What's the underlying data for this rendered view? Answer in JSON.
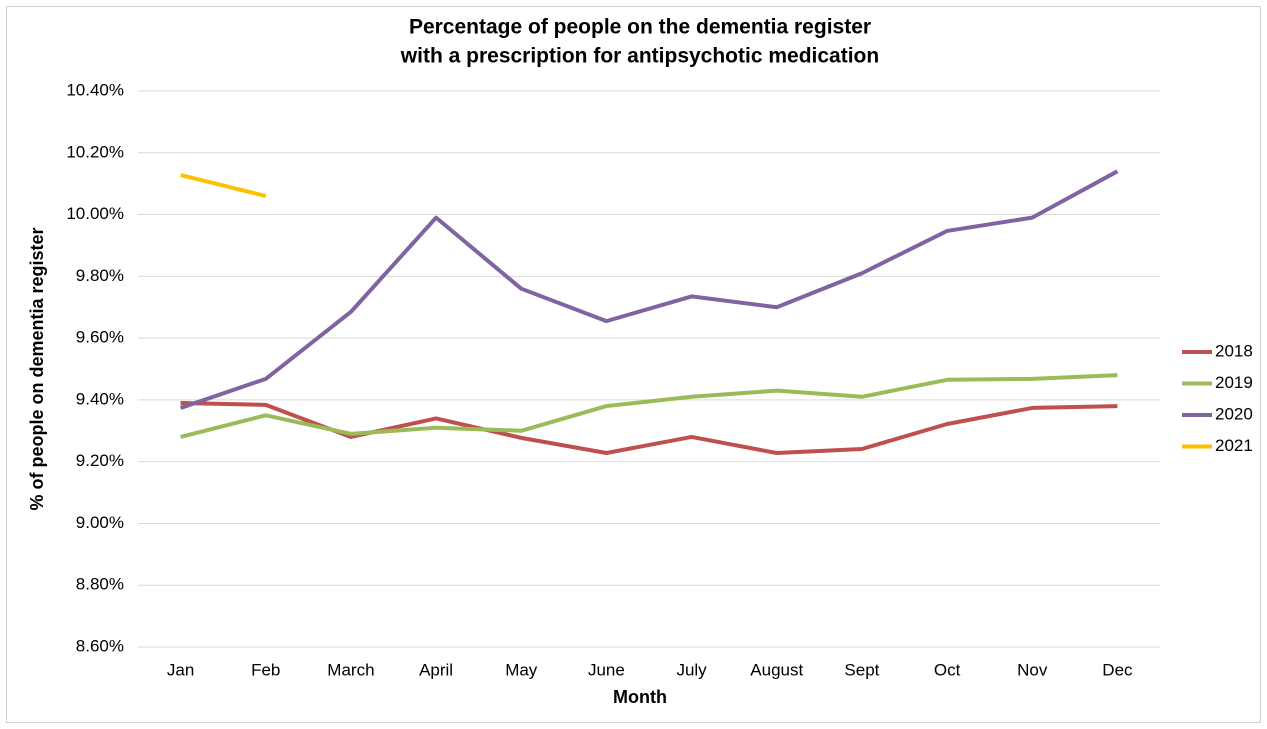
{
  "chart_data": {
    "type": "line",
    "title": [
      "Percentage of people on the dementia register",
      "with a prescription for antipsychotic medication"
    ],
    "x_label": "Month",
    "y_label": "% of people on dementia register",
    "categories": [
      "Jan",
      "Feb",
      "March",
      "April",
      "May",
      "June",
      "July",
      "August",
      "Sept",
      "Oct",
      "Nov",
      "Dec"
    ],
    "series": [
      {
        "name": "2018",
        "color": "#c0504d",
        "values": [
          9.39,
          9.384,
          9.28,
          9.34,
          9.277,
          9.228,
          9.28,
          9.228,
          9.241,
          9.322,
          9.374,
          9.38
        ]
      },
      {
        "name": "2019",
        "color": "#9bbb59",
        "values": [
          9.28,
          9.35,
          9.29,
          9.31,
          9.3,
          9.38,
          9.41,
          9.43,
          9.41,
          9.465,
          9.468,
          9.48
        ]
      },
      {
        "name": "2020",
        "color": "#8064a2",
        "values": [
          9.374,
          9.468,
          9.685,
          9.99,
          9.76,
          9.655,
          9.735,
          9.7,
          9.81,
          9.947,
          9.99,
          10.14
        ]
      },
      {
        "name": "2021",
        "color": "#ffc000",
        "values": [
          10.128,
          10.06,
          null,
          null,
          null,
          null,
          null,
          null,
          null,
          null,
          null,
          null
        ]
      }
    ],
    "ylim": [
      8.6,
      10.4
    ],
    "yticks": [
      {
        "value": 8.6,
        "label": "8.60%"
      },
      {
        "value": 8.8,
        "label": "8.80%"
      },
      {
        "value": 9.0,
        "label": "9.00%"
      },
      {
        "value": 9.2,
        "label": "9.20%"
      },
      {
        "value": 9.4,
        "label": "9.40%"
      },
      {
        "value": 9.6,
        "label": "9.60%"
      },
      {
        "value": 9.8,
        "label": "9.80%"
      },
      {
        "value": 10.0,
        "label": "10.00%"
      },
      {
        "value": 10.2,
        "label": "10.20%"
      },
      {
        "value": 10.4,
        "label": "10.40%"
      }
    ],
    "grid": true,
    "legend": "right"
  }
}
